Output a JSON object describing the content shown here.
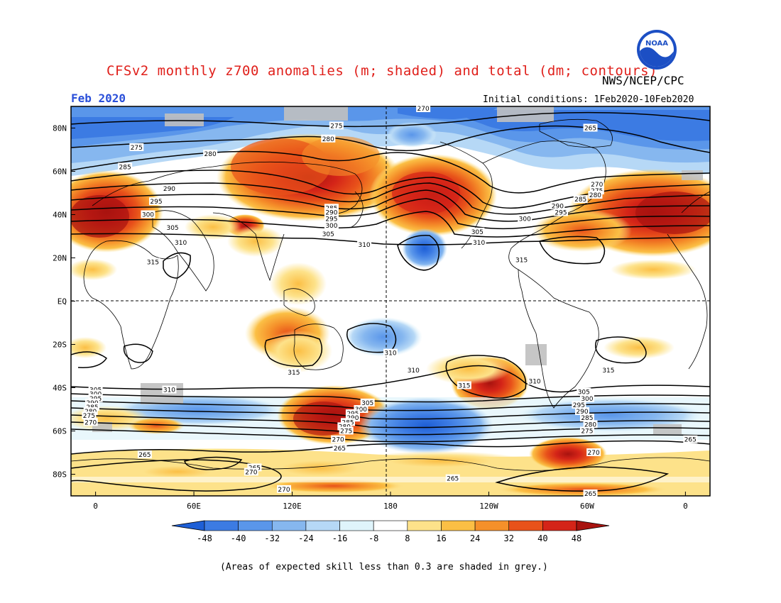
{
  "header": {
    "title": "CFSv2 monthly z700 anomalies (m; shaded) and total (dm; contours)",
    "agency": "NWS/NCEP/CPC",
    "logo_text": "NOAA",
    "date": "Feb 2020",
    "initial_conditions": "Initial conditions: 1Feb2020-10Feb2020"
  },
  "axes": {
    "lat_ticks": [
      "80N",
      "60N",
      "40N",
      "20N",
      "EQ",
      "20S",
      "40S",
      "60S",
      "80S"
    ],
    "lon_ticks": [
      "0",
      "60E",
      "120E",
      "180",
      "120W",
      "60W",
      "0"
    ]
  },
  "colorbar": {
    "levels": [
      "-48",
      "-40",
      "-32",
      "-24",
      "-16",
      "-8",
      "8",
      "16",
      "24",
      "32",
      "40",
      "48"
    ],
    "colors": [
      "#1e5fd6",
      "#3c7be3",
      "#5a96ea",
      "#86b7ef",
      "#b6d8f6",
      "#dff4fb",
      "#ffffff",
      "#fde28a",
      "#fbbf45",
      "#f5902a",
      "#e8521a",
      "#d42418",
      "#a8130f"
    ]
  },
  "contour_labels": [
    "265",
    "270",
    "275",
    "280",
    "285",
    "290",
    "295",
    "300",
    "305",
    "310",
    "315"
  ],
  "map_labels": [
    {
      "text": "270",
      "lon": 200,
      "lat": 89
    },
    {
      "text": "275",
      "lon": 147,
      "lat": 81
    },
    {
      "text": "280",
      "lon": 142,
      "lat": 75
    },
    {
      "text": "265",
      "lon": 302,
      "lat": 80
    },
    {
      "text": "275",
      "lon": 25,
      "lat": 71
    },
    {
      "text": "280",
      "lon": 70,
      "lat": 68
    },
    {
      "text": "285",
      "lon": 18,
      "lat": 62
    },
    {
      "text": "290",
      "lon": 45,
      "lat": 52
    },
    {
      "text": "295",
      "lon": 37,
      "lat": 46
    },
    {
      "text": "300",
      "lon": 32,
      "lat": 40
    },
    {
      "text": "305",
      "lon": 47,
      "lat": 34
    },
    {
      "text": "310",
      "lon": 52,
      "lat": 27
    },
    {
      "text": "315",
      "lon": 35,
      "lat": 18
    },
    {
      "text": "285",
      "lon": 144,
      "lat": 43
    },
    {
      "text": "290",
      "lon": 144,
      "lat": 41
    },
    {
      "text": "295",
      "lon": 144,
      "lat": 38
    },
    {
      "text": "300",
      "lon": 144,
      "lat": 35
    },
    {
      "text": "305",
      "lon": 142,
      "lat": 31
    },
    {
      "text": "310",
      "lon": 164,
      "lat": 26
    },
    {
      "text": "270",
      "lon": 306,
      "lat": 54
    },
    {
      "text": "275",
      "lon": 306,
      "lat": 51
    },
    {
      "text": "280",
      "lon": 305,
      "lat": 49
    },
    {
      "text": "285",
      "lon": 296,
      "lat": 47
    },
    {
      "text": "290",
      "lon": 282,
      "lat": 44
    },
    {
      "text": "295",
      "lon": 284,
      "lat": 41
    },
    {
      "text": "300",
      "lon": 262,
      "lat": 38
    },
    {
      "text": "305",
      "lon": 233,
      "lat": 32
    },
    {
      "text": "310",
      "lon": 234,
      "lat": 27
    },
    {
      "text": "315",
      "lon": 260,
      "lat": 19
    },
    {
      "text": "310",
      "lon": 180,
      "lat": -24
    },
    {
      "text": "310",
      "lon": 194,
      "lat": -32
    },
    {
      "text": "315",
      "lon": 121,
      "lat": -33
    },
    {
      "text": "315",
      "lon": 313,
      "lat": -32
    },
    {
      "text": "310",
      "lon": 268,
      "lat": -37
    },
    {
      "text": "315",
      "lon": 225,
      "lat": -39
    },
    {
      "text": "310",
      "lon": 45,
      "lat": -41
    },
    {
      "text": "305",
      "lon": 0,
      "lat": -41
    },
    {
      "text": "300",
      "lon": 0,
      "lat": -43
    },
    {
      "text": "295",
      "lon": 0,
      "lat": -45
    },
    {
      "text": "290",
      "lon": -2,
      "lat": -47
    },
    {
      "text": "285",
      "lon": -2,
      "lat": -49
    },
    {
      "text": "280",
      "lon": -3,
      "lat": -51
    },
    {
      "text": "275",
      "lon": -4,
      "lat": -53
    },
    {
      "text": "270",
      "lon": -3,
      "lat": -56
    },
    {
      "text": "305",
      "lon": 166,
      "lat": -47
    },
    {
      "text": "300",
      "lon": 162,
      "lat": -50
    },
    {
      "text": "295",
      "lon": 157,
      "lat": -52
    },
    {
      "text": "290",
      "lon": 157,
      "lat": -54
    },
    {
      "text": "285",
      "lon": 154,
      "lat": -56
    },
    {
      "text": "280",
      "lon": 152,
      "lat": -58
    },
    {
      "text": "275",
      "lon": 153,
      "lat": -60
    },
    {
      "text": "270",
      "lon": 148,
      "lat": -64
    },
    {
      "text": "265",
      "lon": 149,
      "lat": -68
    },
    {
      "text": "305",
      "lon": 298,
      "lat": -42
    },
    {
      "text": "300",
      "lon": 300,
      "lat": -45
    },
    {
      "text": "295",
      "lon": 295,
      "lat": -48
    },
    {
      "text": "290",
      "lon": 297,
      "lat": -51
    },
    {
      "text": "285",
      "lon": 300,
      "lat": -54
    },
    {
      "text": "280",
      "lon": 302,
      "lat": -57
    },
    {
      "text": "275",
      "lon": 300,
      "lat": -60
    },
    {
      "text": "270",
      "lon": 304,
      "lat": -70
    },
    {
      "text": "265",
      "lon": 218,
      "lat": -82
    },
    {
      "text": "265",
      "lon": 302,
      "lat": -89
    },
    {
      "text": "265",
      "lon": 30,
      "lat": -71
    },
    {
      "text": "265",
      "lon": 97,
      "lat": -77
    },
    {
      "text": "270",
      "lon": 95,
      "lat": -79
    },
    {
      "text": "270",
      "lon": 115,
      "lat": -87
    },
    {
      "text": "265",
      "lon": 363,
      "lat": -64
    }
  ],
  "footnote": "(Areas of expected skill less than 0.3 are shaded in grey.)"
}
